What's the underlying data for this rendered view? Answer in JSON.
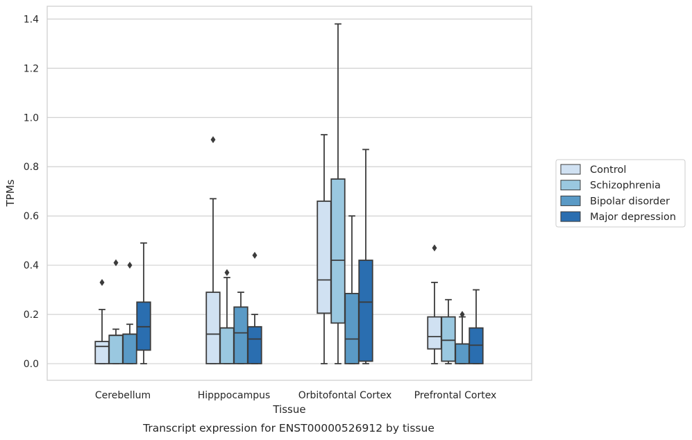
{
  "chart_data": {
    "type": "box",
    "caption": "Transcript expression for ENST00000526912 by tissue",
    "xlabel": "Tissue",
    "ylabel": "TPMs",
    "ylim": [
      -0.068,
      1.45
    ],
    "yticks": [
      0.0,
      0.2,
      0.4,
      0.6,
      0.8,
      1.0,
      1.2,
      1.4
    ],
    "ytick_labels": [
      "0.0",
      "0.2",
      "0.4",
      "0.6",
      "0.8",
      "1.0",
      "1.2",
      "1.4"
    ],
    "grid": "horizontal",
    "legend_position": "right",
    "categories": [
      "Cerebellum",
      "Hipppocampus",
      "Orbitofontal Cortex",
      "Prefrontal Cortex"
    ],
    "series": [
      {
        "name": "Control",
        "color": "#d0e1f2",
        "boxes": [
          {
            "whislo": 0.0,
            "q1": 0.0,
            "med": 0.07,
            "q3": 0.09,
            "whishi": 0.22,
            "fliers": [
              0.33
            ]
          },
          {
            "whislo": 0.0,
            "q1": 0.0,
            "med": 0.12,
            "q3": 0.29,
            "whishi": 0.67,
            "fliers": [
              0.91
            ]
          },
          {
            "whislo": 0.0,
            "q1": 0.205,
            "med": 0.34,
            "q3": 0.66,
            "whishi": 0.93,
            "fliers": []
          },
          {
            "whislo": 0.0,
            "q1": 0.06,
            "med": 0.11,
            "q3": 0.19,
            "whishi": 0.33,
            "fliers": [
              0.47
            ]
          }
        ]
      },
      {
        "name": "Schizophrenia",
        "color": "#9ac8e0",
        "boxes": [
          {
            "whislo": 0.0,
            "q1": 0.0,
            "med": 0.115,
            "q3": 0.115,
            "whishi": 0.14,
            "fliers": [
              0.41
            ]
          },
          {
            "whislo": 0.0,
            "q1": 0.0,
            "med": 0.145,
            "q3": 0.145,
            "whishi": 0.35,
            "fliers": [
              0.37
            ]
          },
          {
            "whislo": 0.0,
            "q1": 0.165,
            "med": 0.42,
            "q3": 0.75,
            "whishi": 1.38,
            "fliers": []
          },
          {
            "whislo": 0.0,
            "q1": 0.01,
            "med": 0.095,
            "q3": 0.19,
            "whishi": 0.26,
            "fliers": []
          }
        ]
      },
      {
        "name": "Bipolar disorder",
        "color": "#5a9ac6",
        "boxes": [
          {
            "whislo": 0.0,
            "q1": 0.0,
            "med": 0.12,
            "q3": 0.12,
            "whishi": 0.16,
            "fliers": [
              0.4
            ]
          },
          {
            "whislo": 0.0,
            "q1": 0.0,
            "med": 0.125,
            "q3": 0.23,
            "whishi": 0.29,
            "fliers": []
          },
          {
            "whislo": 0.0,
            "q1": 0.0,
            "med": 0.1,
            "q3": 0.285,
            "whishi": 0.6,
            "fliers": []
          },
          {
            "whislo": 0.0,
            "q1": 0.0,
            "med": 0.08,
            "q3": 0.08,
            "whishi": 0.19,
            "fliers": [
              0.2
            ]
          }
        ]
      },
      {
        "name": "Major depression",
        "color": "#2a6eb0",
        "boxes": [
          {
            "whislo": 0.0,
            "q1": 0.055,
            "med": 0.15,
            "q3": 0.25,
            "whishi": 0.49,
            "fliers": []
          },
          {
            "whislo": 0.0,
            "q1": 0.0,
            "med": 0.1,
            "q3": 0.15,
            "whishi": 0.2,
            "fliers": [
              0.44
            ]
          },
          {
            "whislo": 0.0,
            "q1": 0.01,
            "med": 0.25,
            "q3": 0.42,
            "whishi": 0.87,
            "fliers": []
          },
          {
            "whislo": 0.0,
            "q1": 0.0,
            "med": 0.075,
            "q3": 0.145,
            "whishi": 0.3,
            "fliers": []
          }
        ]
      }
    ]
  }
}
